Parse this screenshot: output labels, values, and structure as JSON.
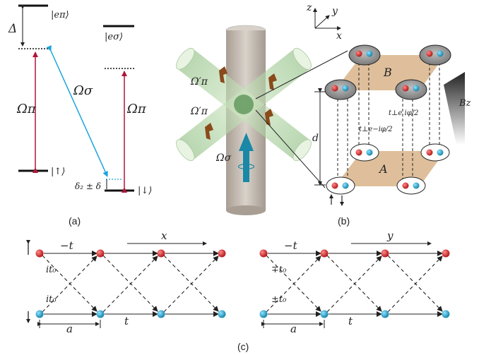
{
  "panel_a": {
    "label": "(a)",
    "level_ept": "|eπ⟩",
    "level_esigma": "|eσ⟩",
    "level_up": "|↑⟩",
    "level_down": "|↓⟩",
    "detuning": "Δ",
    "omega_pi_left": "Ωπ",
    "omega_sigma": "Ωσ",
    "omega_pi_right": "Ωπ",
    "delta_label": "δ₂ ± δ"
  },
  "panel_mid": {
    "omega_pi_prime_a": "Ω′π",
    "omega_pi_prime_b": "Ω′π",
    "omega_sigma": "Ωσ"
  },
  "panel_b": {
    "label": "(b)",
    "axis_z": "z",
    "axis_y": "y",
    "axis_x": "x",
    "layer_b": "B",
    "layer_a": "A",
    "spacing": "d",
    "hop_minus": "t⊥e−iφ/2",
    "hop_plus": "t⊥e iφ/2",
    "gradient": "Bz",
    "spin_up": "↑",
    "spin_down": "↓"
  },
  "panel_c": {
    "label": "(c)",
    "left": {
      "direction": "x",
      "top_hop": "−t",
      "diag1": "it₀",
      "diag2": "it₀",
      "bottom_hop": "t",
      "spacing": "a",
      "spin_up": "↑",
      "spin_down": "↓"
    },
    "right": {
      "direction": "y",
      "top_hop": "−t",
      "diag1": "∓t₀",
      "diag2": "±t₀",
      "bottom_hop": "t",
      "spacing": "a"
    }
  },
  "colors": {
    "red_arrow": "#b0153a",
    "blue_arrow": "#1aa4dc",
    "red_atom": "#c81d1d",
    "blue_atom": "#1b9ec4",
    "tan_plane": "#d9b48a"
  }
}
